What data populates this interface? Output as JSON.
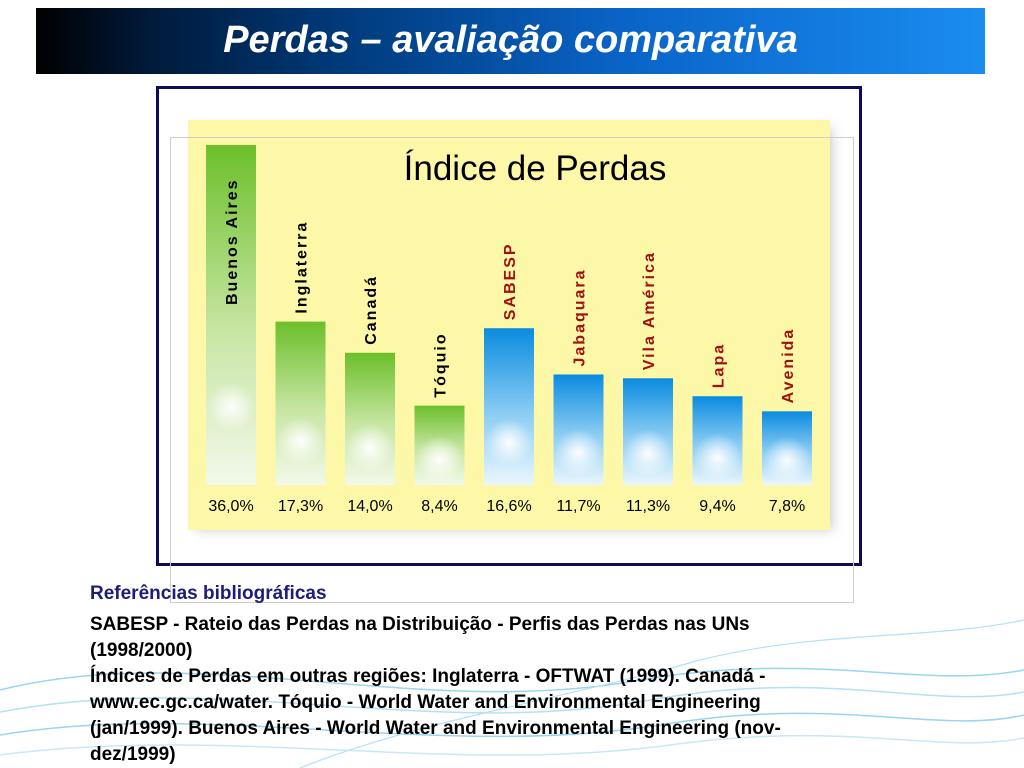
{
  "slide_title": "Perdas – avaliação comparativa",
  "colors": {
    "green_dark": "#6cbf2a",
    "green_light": "#f2f9ea",
    "blue_dark": "#0a8be0",
    "blue_light": "#eaf6fd",
    "label_green": "#000000",
    "label_blue": "#a01010",
    "panel": "#fcf8a8"
  },
  "chart_data": {
    "type": "bar",
    "title": "Índice de Perdas",
    "categories": [
      "Buenos Aires",
      "Inglaterra",
      "Canadá",
      "Tóquio",
      "SABESP",
      "Jabaquara",
      "Vila América",
      "Lapa",
      "Avenida"
    ],
    "values": [
      36.0,
      17.3,
      14.0,
      8.4,
      16.6,
      11.7,
      11.3,
      9.4,
      7.8
    ],
    "value_labels": [
      "36,0%",
      "17,3%",
      "14,0%",
      "8,4%",
      "16,6%",
      "11,7%",
      "11,3%",
      "9,4%",
      "7,8%"
    ],
    "groups": [
      "green",
      "green",
      "green",
      "green",
      "blue",
      "blue",
      "blue",
      "blue",
      "blue"
    ],
    "unit": "%",
    "ylim": [
      0,
      36.0
    ],
    "grid": false,
    "legend": "none",
    "xlabel": "",
    "ylabel": ""
  },
  "references": {
    "heading": "Referências bibliográficas",
    "lines": [
      "SABESP - Rateio das Perdas na Distribuição - Perfis das Perdas nas UNs",
      "(1998/2000)",
      "Índices de Perdas em outras regiões: Inglaterra - OFTWAT (1999). Canadá -",
      "www.ec.gc.ca/water. Tóquio - World Water and Environmental Engineering",
      "(jan/1999). Buenos Aires - World Water and Environmental Engineering (nov-",
      "dez/1999)"
    ]
  }
}
